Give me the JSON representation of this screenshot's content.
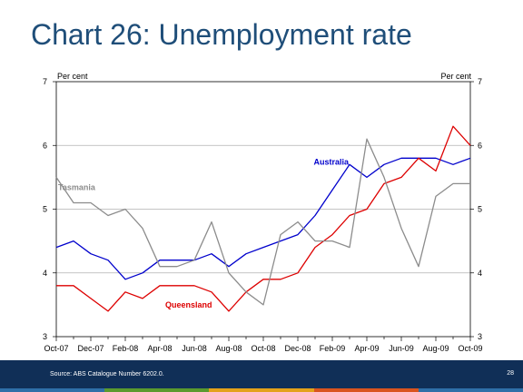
{
  "slide": {
    "title": "Chart 26: Unemployment rate",
    "source": "Source: ABS Catalogue Number 6202.0.",
    "page_number": "28"
  },
  "colors": {
    "title": "#1f4e79",
    "footer": "#102f57",
    "australia": "#0000cc",
    "queensland": "#dd0000",
    "tasmania": "#8c8c8c",
    "stripes": [
      "#2f6fa8",
      "#5a9a2e",
      "#e3a21a",
      "#d9541f",
      "#2f6fa8"
    ]
  },
  "chart_data": {
    "type": "line",
    "ylabel_left": "Per cent",
    "ylabel_right": "Per cent",
    "ylim": [
      3,
      7
    ],
    "yticks": [
      3,
      4,
      5,
      6,
      7
    ],
    "grid": true,
    "x_tick_labels": [
      "Oct-07",
      "Dec-07",
      "Feb-08",
      "Apr-08",
      "Jun-08",
      "Aug-08",
      "Oct-08",
      "Dec-08",
      "Feb-09",
      "Apr-09",
      "Jun-09",
      "Aug-09",
      "Oct-09"
    ],
    "x": [
      "Oct-07",
      "Nov-07",
      "Dec-07",
      "Jan-08",
      "Feb-08",
      "Mar-08",
      "Apr-08",
      "May-08",
      "Jun-08",
      "Jul-08",
      "Aug-08",
      "Sep-08",
      "Oct-08",
      "Nov-08",
      "Dec-08",
      "Jan-09",
      "Feb-09",
      "Mar-09",
      "Apr-09",
      "May-09",
      "Jun-09",
      "Jul-09",
      "Aug-09",
      "Sep-09",
      "Oct-09"
    ],
    "series": [
      {
        "name": "Australia",
        "color_key": "australia",
        "values": [
          4.4,
          4.5,
          4.3,
          4.2,
          3.9,
          4.0,
          4.2,
          4.2,
          4.2,
          4.3,
          4.1,
          4.3,
          4.4,
          4.5,
          4.6,
          4.9,
          5.3,
          5.7,
          5.5,
          5.7,
          5.8,
          5.8,
          5.8,
          5.7,
          5.8
        ]
      },
      {
        "name": "Queensland",
        "color_key": "queensland",
        "values": [
          3.8,
          3.8,
          3.6,
          3.4,
          3.7,
          3.6,
          3.8,
          3.8,
          3.8,
          3.7,
          3.4,
          3.7,
          3.9,
          3.9,
          4.0,
          4.4,
          4.6,
          4.9,
          5.0,
          5.4,
          5.5,
          5.8,
          5.6,
          6.3,
          6.0
        ]
      },
      {
        "name": "Tasmania",
        "color_key": "tasmania",
        "values": [
          5.5,
          5.1,
          5.1,
          4.9,
          5.0,
          4.7,
          4.1,
          4.1,
          4.2,
          4.8,
          4.0,
          3.7,
          3.5,
          4.6,
          4.8,
          4.5,
          4.5,
          4.4,
          6.1,
          5.5,
          4.7,
          4.1,
          5.2,
          5.4,
          5.4
        ]
      }
    ]
  }
}
